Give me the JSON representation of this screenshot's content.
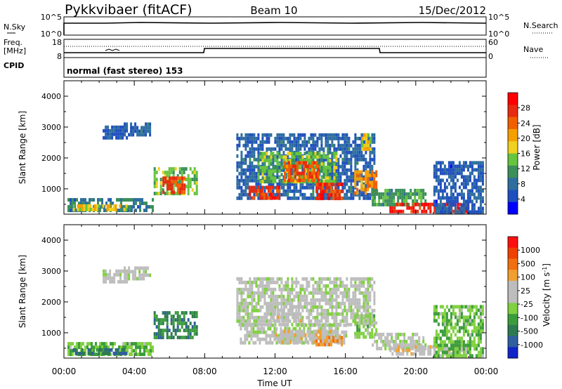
{
  "header": {
    "station": "Pykkvibaer (fitACF)",
    "beam": "Beam 10",
    "date": "15/Dec/2012"
  },
  "nsky_panel": {
    "left_label": "N.Sky",
    "left_ticks": [
      "10^5",
      "10^0"
    ],
    "right_ticks": [
      "10^5",
      "10^0"
    ],
    "right_label": "N.Search"
  },
  "freq_panel": {
    "left_label_line1": "Freq.",
    "left_label_line2": "[MHz]",
    "left_ticks": [
      "18",
      "8"
    ],
    "right_ticks": [
      "60",
      "0"
    ],
    "right_label": "Nave"
  },
  "cpid_panel": {
    "label": "CPID",
    "text": "normal (fast stereo) 153"
  },
  "axes": {
    "ylabel": "Slant Range [km]",
    "yticks": [
      "4000",
      "3000",
      "2000",
      "1000"
    ],
    "xticks": [
      "00:00",
      "04:00",
      "08:00",
      "12:00",
      "16:00",
      "20:00",
      "00:00"
    ],
    "xlabel": "Time UT"
  },
  "colors": {
    "power": [
      "#0000ff",
      "#1f4fbf",
      "#2e6e9e",
      "#3a8f5a",
      "#66c43f",
      "#f0d020",
      "#f5a000",
      "#f06000",
      "#e82a10",
      "#ff0000"
    ],
    "velocity": [
      "#1024c8",
      "#2f5f9f",
      "#2c7a50",
      "#3c9c3c",
      "#80d040",
      "#bdbdbd",
      "#bdbdbd",
      "#f0a030",
      "#f07010",
      "#f04000",
      "#ff1010"
    ]
  },
  "chart_data": [
    {
      "type": "heatmap",
      "title": "Power",
      "colorbar_label": "Power [dB]",
      "colorbar_ticks": [
        "28",
        "24",
        "20",
        "16",
        "12",
        "8",
        "4"
      ],
      "value_range": [
        0,
        32
      ],
      "x_range_hours": [
        0,
        24
      ],
      "y_range_km": [
        180,
        4500
      ],
      "ylabel": "Slant Range [km]",
      "xlabel": "",
      "regions": [
        {
          "t0": 2.2,
          "t1": 3.6,
          "r0": 2700,
          "r1": 3050,
          "v": 6
        },
        {
          "t0": 3.4,
          "t1": 4.9,
          "r0": 2800,
          "r1": 3150,
          "v": 7
        },
        {
          "t0": 5.1,
          "t1": 7.6,
          "r0": 900,
          "r1": 1700,
          "v": 14
        },
        {
          "t0": 5.6,
          "t1": 6.9,
          "r0": 900,
          "r1": 1400,
          "v": 26
        },
        {
          "t0": 0.2,
          "t1": 5.0,
          "r0": 250,
          "r1": 700,
          "v": 9
        },
        {
          "t0": 0.5,
          "t1": 3.5,
          "r0": 300,
          "r1": 500,
          "v": 18
        },
        {
          "t0": 9.8,
          "t1": 17.6,
          "r0": 700,
          "r1": 2800,
          "v": 7
        },
        {
          "t0": 11.0,
          "t1": 15.5,
          "r0": 1200,
          "r1": 2200,
          "v": 14
        },
        {
          "t0": 12.5,
          "t1": 14.5,
          "r0": 1300,
          "r1": 1900,
          "v": 25
        },
        {
          "t0": 10.5,
          "t1": 12.2,
          "r0": 700,
          "r1": 1100,
          "v": 27
        },
        {
          "t0": 14.3,
          "t1": 15.8,
          "r0": 650,
          "r1": 1200,
          "v": 27
        },
        {
          "t0": 16.5,
          "t1": 17.8,
          "r0": 900,
          "r1": 1600,
          "v": 22
        },
        {
          "t0": 16.9,
          "t1": 17.4,
          "r0": 2250,
          "r1": 2800,
          "v": 18
        },
        {
          "t0": 17.5,
          "t1": 20.5,
          "r0": 500,
          "r1": 1000,
          "v": 12
        },
        {
          "t0": 18.5,
          "t1": 23.0,
          "r0": 250,
          "r1": 550,
          "v": 28
        },
        {
          "t0": 21.0,
          "t1": 23.8,
          "r0": 300,
          "r1": 1900,
          "v": 6
        }
      ]
    },
    {
      "type": "heatmap",
      "title": "Velocity",
      "colorbar_label": "Velocity [m s^-1]",
      "colorbar_ticks": [
        "1000",
        "500",
        "100",
        "25",
        "-25",
        "-100",
        "-500",
        "-1000"
      ],
      "value_range": [
        -1200,
        1200
      ],
      "x_range_hours": [
        0,
        24
      ],
      "y_range_km": [
        180,
        4500
      ],
      "ylabel": "Slant Range [km]",
      "xlabel": "Time UT",
      "regions": [
        {
          "t0": 2.2,
          "t1": 3.6,
          "r0": 2700,
          "r1": 3050,
          "v": 0
        },
        {
          "t0": 3.4,
          "t1": 4.9,
          "r0": 2800,
          "r1": 3150,
          "v": 0
        },
        {
          "t0": 5.1,
          "t1": 7.6,
          "r0": 900,
          "r1": 1700,
          "v": -600
        },
        {
          "t0": 0.2,
          "t1": 5.0,
          "r0": 250,
          "r1": 700,
          "v": -300
        },
        {
          "t0": 0.5,
          "t1": 3.5,
          "r0": 300,
          "r1": 500,
          "v": -700
        },
        {
          "t0": 9.8,
          "t1": 17.6,
          "r0": 1300,
          "r1": 2800,
          "v": 0
        },
        {
          "t0": 10.0,
          "t1": 16.0,
          "r0": 700,
          "r1": 1300,
          "v": 0
        },
        {
          "t0": 11.5,
          "t1": 13.5,
          "r0": 1400,
          "r1": 1900,
          "v": 150
        },
        {
          "t0": 12.0,
          "t1": 15.5,
          "r0": 700,
          "r1": 1100,
          "v": 200
        },
        {
          "t0": 14.3,
          "t1": 15.8,
          "r0": 650,
          "r1": 900,
          "v": 500
        },
        {
          "t0": 16.5,
          "t1": 17.8,
          "r0": 900,
          "r1": 1600,
          "v": -200
        },
        {
          "t0": 17.5,
          "t1": 20.5,
          "r0": 500,
          "r1": 1000,
          "v": 0
        },
        {
          "t0": 18.5,
          "t1": 23.0,
          "r0": 300,
          "r1": 600,
          "v": 200
        },
        {
          "t0": 21.0,
          "t1": 23.8,
          "r0": 300,
          "r1": 1900,
          "v": -300
        }
      ]
    }
  ]
}
